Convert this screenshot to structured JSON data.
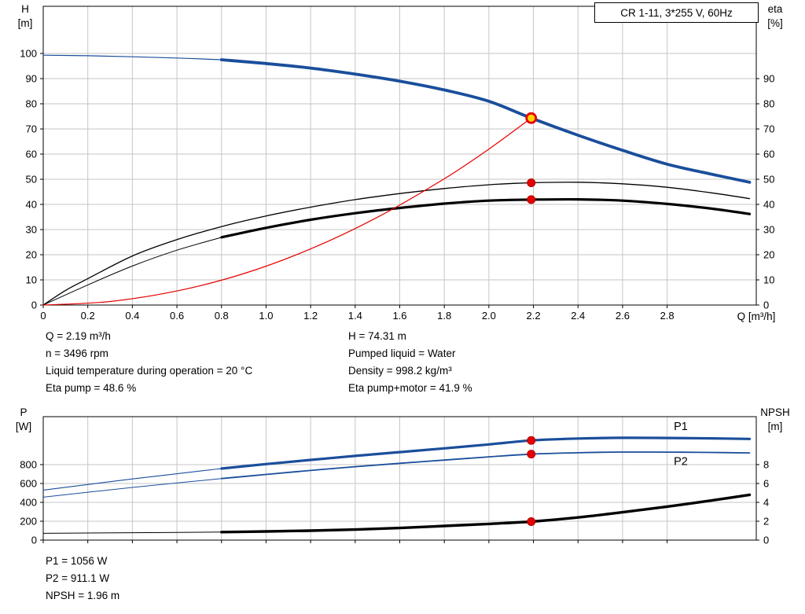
{
  "title_box": "CR 1-11, 3*255 V, 60Hz",
  "colors": {
    "curve_blue": "#1a4e9b",
    "curve_black": "#000000",
    "system_red": "#e60000",
    "duty_yellow": "#ffd300",
    "grid_gray": "#c6c6c6"
  },
  "info_panel": {
    "left": [
      "Q = 2.19 m³/h",
      "n = 3496 rpm",
      "Liquid temperature during operation = 20 °C",
      "Eta pump = 48.6 %"
    ],
    "right": [
      "H = 74.31 m",
      "Pumped liquid = Water",
      "Density = 998.2 kg/m³",
      "Eta pump+motor = 41.9 %"
    ]
  },
  "result_panel": {
    "lines": [
      "P1 = 1056 W",
      "P2 = 911.1 W",
      "NPSH = 1.96 m"
    ]
  },
  "chart_data": [
    {
      "type": "line",
      "title": "CR 1-11, 3*255 V, 60Hz",
      "grid": true,
      "x": {
        "label": "Q [m³/h]",
        "min": 0,
        "max": 3.2,
        "ticks": [
          0,
          0.2,
          0.4,
          0.6,
          0.8,
          1.0,
          1.2,
          1.4,
          1.6,
          1.8,
          2.0,
          2.2,
          2.4,
          2.6,
          2.8
        ],
        "show_tick_labels": true
      },
      "y_left": {
        "name": "H",
        "unit": "[m]",
        "min": 0,
        "max": 118.75,
        "ticks": [
          0,
          10,
          20,
          30,
          40,
          50,
          60,
          70,
          80,
          90,
          100
        ]
      },
      "y_right": {
        "name": "eta",
        "unit": "[%]",
        "min": 0,
        "max": 118.75,
        "ticks": [
          0,
          10,
          20,
          30,
          40,
          50,
          60,
          70,
          80,
          90
        ]
      },
      "series": [
        {
          "name": "head-curve-lead",
          "axis": "left",
          "color": "#1a4e9b",
          "width": 1.2,
          "points": [
            [
              0,
              99.3
            ],
            [
              0.2,
              99.1
            ],
            [
              0.4,
              98.7
            ],
            [
              0.6,
              98.2
            ],
            [
              0.8,
              97.5
            ]
          ]
        },
        {
          "name": "head-curve",
          "axis": "left",
          "color": "#1a4e9b",
          "width": 3.8,
          "points": [
            [
              0.8,
              97.5
            ],
            [
              1.0,
              96.0
            ],
            [
              1.2,
              94.2
            ],
            [
              1.4,
              91.8
            ],
            [
              1.6,
              89.0
            ],
            [
              1.8,
              85.5
            ],
            [
              2.0,
              81.0
            ],
            [
              2.19,
              74.31
            ],
            [
              2.4,
              67.5
            ],
            [
              2.6,
              61.5
            ],
            [
              2.8,
              56.0
            ],
            [
              3.0,
              52.0
            ],
            [
              3.17,
              48.8
            ]
          ]
        },
        {
          "name": "eta-pump-curve",
          "axis": "right",
          "color": "#000000",
          "width": 1.3,
          "points": [
            [
              0,
              0
            ],
            [
              0.1,
              5.8
            ],
            [
              0.2,
              10.5
            ],
            [
              0.4,
              19.5
            ],
            [
              0.6,
              26.0
            ],
            [
              0.8,
              31.2
            ],
            [
              1.0,
              35.4
            ],
            [
              1.2,
              38.9
            ],
            [
              1.4,
              41.9
            ],
            [
              1.6,
              44.3
            ],
            [
              1.8,
              46.3
            ],
            [
              2.0,
              47.8
            ],
            [
              2.19,
              48.6
            ],
            [
              2.4,
              48.8
            ],
            [
              2.6,
              48.2
            ],
            [
              2.8,
              46.8
            ],
            [
              3.0,
              44.6
            ],
            [
              3.17,
              42.3
            ]
          ]
        },
        {
          "name": "eta-pump-motor-lead",
          "axis": "right",
          "color": "#000000",
          "width": 1.0,
          "points": [
            [
              0,
              0
            ],
            [
              0.2,
              8.0
            ],
            [
              0.4,
              15.5
            ],
            [
              0.6,
              21.8
            ],
            [
              0.8,
              26.9
            ]
          ]
        },
        {
          "name": "eta-pump-motor-curve",
          "axis": "right",
          "color": "#000000",
          "width": 3.2,
          "points": [
            [
              0.8,
              26.9
            ],
            [
              1.0,
              30.7
            ],
            [
              1.2,
              33.9
            ],
            [
              1.4,
              36.5
            ],
            [
              1.6,
              38.6
            ],
            [
              1.8,
              40.3
            ],
            [
              2.0,
              41.5
            ],
            [
              2.19,
              41.9
            ],
            [
              2.4,
              42.0
            ],
            [
              2.6,
              41.5
            ],
            [
              2.8,
              40.2
            ],
            [
              3.0,
              38.3
            ],
            [
              3.17,
              36.2
            ]
          ]
        },
        {
          "name": "system-curve",
          "axis": "left",
          "color": "#e60000",
          "width": 1.2,
          "points": [
            [
              0,
              0
            ],
            [
              0.3,
              1.4
            ],
            [
              0.6,
              5.6
            ],
            [
              0.9,
              12.5
            ],
            [
              1.2,
              22.3
            ],
            [
              1.5,
              34.9
            ],
            [
              1.8,
              50.2
            ],
            [
              2.0,
              62.0
            ],
            [
              2.19,
              74.31
            ]
          ]
        }
      ],
      "markers": [
        {
          "name": "duty-point",
          "axis": "left",
          "x": 2.19,
          "y": 74.31,
          "r": 6,
          "fill": "#ffd300",
          "stroke": "#e60000",
          "stroke_width": 2.8,
          "interactable": true
        },
        {
          "name": "eta-pump-point",
          "axis": "right",
          "x": 2.19,
          "y": 48.6,
          "r": 5,
          "fill": "#e60000",
          "stroke": "#b30000",
          "stroke_width": 1,
          "interactable": false
        },
        {
          "name": "eta-pump-motor-point",
          "axis": "right",
          "x": 2.19,
          "y": 41.9,
          "r": 5,
          "fill": "#e60000",
          "stroke": "#b30000",
          "stroke_width": 1,
          "interactable": false
        }
      ],
      "annotations": []
    },
    {
      "type": "line",
      "title": "",
      "grid": true,
      "x": {
        "label": "",
        "min": 0,
        "max": 3.2,
        "ticks": [
          0,
          0.2,
          0.4,
          0.6,
          0.8,
          1.0,
          1.2,
          1.4,
          1.6,
          1.8,
          2.0,
          2.2,
          2.4,
          2.6,
          2.8
        ],
        "show_tick_labels": false
      },
      "y_left": {
        "name": "P",
        "unit": "[W]",
        "min": 0,
        "max": 1308,
        "ticks": [
          0,
          200,
          400,
          600,
          800
        ]
      },
      "y_right": {
        "name": "NPSH",
        "unit": "[m]",
        "min": 0,
        "max": 13.08,
        "ticks": [
          0,
          2,
          4,
          6,
          8
        ]
      },
      "series": [
        {
          "name": "p1-curve-lead",
          "axis": "left",
          "color": "#1a4e9b",
          "width": 1.1,
          "points": [
            [
              0,
              530
            ],
            [
              0.4,
              648
            ],
            [
              0.8,
              758
            ]
          ]
        },
        {
          "name": "p1-curve",
          "axis": "left",
          "color": "#1a4e9b",
          "width": 3.2,
          "points": [
            [
              0.8,
              758
            ],
            [
              1.0,
              806
            ],
            [
              1.2,
              850
            ],
            [
              1.4,
              892
            ],
            [
              1.6,
              932
            ],
            [
              1.8,
              972
            ],
            [
              2.0,
              1014
            ],
            [
              2.19,
              1056
            ],
            [
              2.4,
              1076
            ],
            [
              2.6,
              1084
            ],
            [
              2.8,
              1082
            ],
            [
              3.0,
              1078
            ],
            [
              3.17,
              1072
            ]
          ]
        },
        {
          "name": "p2-curve-lead",
          "axis": "left",
          "color": "#1a4e9b",
          "width": 1.0,
          "points": [
            [
              0,
              455
            ],
            [
              0.4,
              558
            ],
            [
              0.8,
              652
            ]
          ]
        },
        {
          "name": "p2-curve",
          "axis": "left",
          "color": "#1a4e9b",
          "width": 1.8,
          "points": [
            [
              0.8,
              652
            ],
            [
              1.0,
              696
            ],
            [
              1.2,
              738
            ],
            [
              1.4,
              778
            ],
            [
              1.6,
              814
            ],
            [
              1.8,
              848
            ],
            [
              2.0,
              882
            ],
            [
              2.19,
              911
            ],
            [
              2.4,
              926
            ],
            [
              2.6,
              933
            ],
            [
              2.8,
              932
            ],
            [
              3.0,
              929
            ],
            [
              3.17,
              924
            ]
          ]
        },
        {
          "name": "npsh-curve-lead",
          "axis": "right",
          "color": "#000000",
          "width": 1.0,
          "points": [
            [
              0,
              0.72
            ],
            [
              0.4,
              0.78
            ],
            [
              0.8,
              0.85
            ]
          ]
        },
        {
          "name": "npsh-curve",
          "axis": "right",
          "color": "#000000",
          "width": 3.4,
          "points": [
            [
              0.8,
              0.85
            ],
            [
              1.0,
              0.92
            ],
            [
              1.2,
              1.0
            ],
            [
              1.4,
              1.12
            ],
            [
              1.6,
              1.28
            ],
            [
              1.8,
              1.5
            ],
            [
              2.0,
              1.72
            ],
            [
              2.19,
              1.96
            ],
            [
              2.4,
              2.4
            ],
            [
              2.6,
              2.95
            ],
            [
              2.8,
              3.55
            ],
            [
              3.0,
              4.2
            ],
            [
              3.17,
              4.8
            ]
          ]
        }
      ],
      "markers": [
        {
          "name": "p1-point",
          "axis": "left",
          "x": 2.19,
          "y": 1056,
          "r": 5,
          "fill": "#e60000",
          "stroke": "#b30000",
          "stroke_width": 1,
          "interactable": false
        },
        {
          "name": "p2-point",
          "axis": "left",
          "x": 2.19,
          "y": 911,
          "r": 5,
          "fill": "#e60000",
          "stroke": "#b30000",
          "stroke_width": 1,
          "interactable": false
        },
        {
          "name": "npsh-point",
          "axis": "right",
          "x": 2.19,
          "y": 1.96,
          "r": 5,
          "fill": "#e60000",
          "stroke": "#b30000",
          "stroke_width": 1,
          "interactable": false
        }
      ],
      "annotations": [
        {
          "text": "P1",
          "axis": "left",
          "x": 2.83,
          "y": 1165,
          "color": "#1a4e9b"
        },
        {
          "text": "P2",
          "axis": "left",
          "x": 2.83,
          "y": 795,
          "color": "#1a4e9b"
        }
      ]
    }
  ]
}
